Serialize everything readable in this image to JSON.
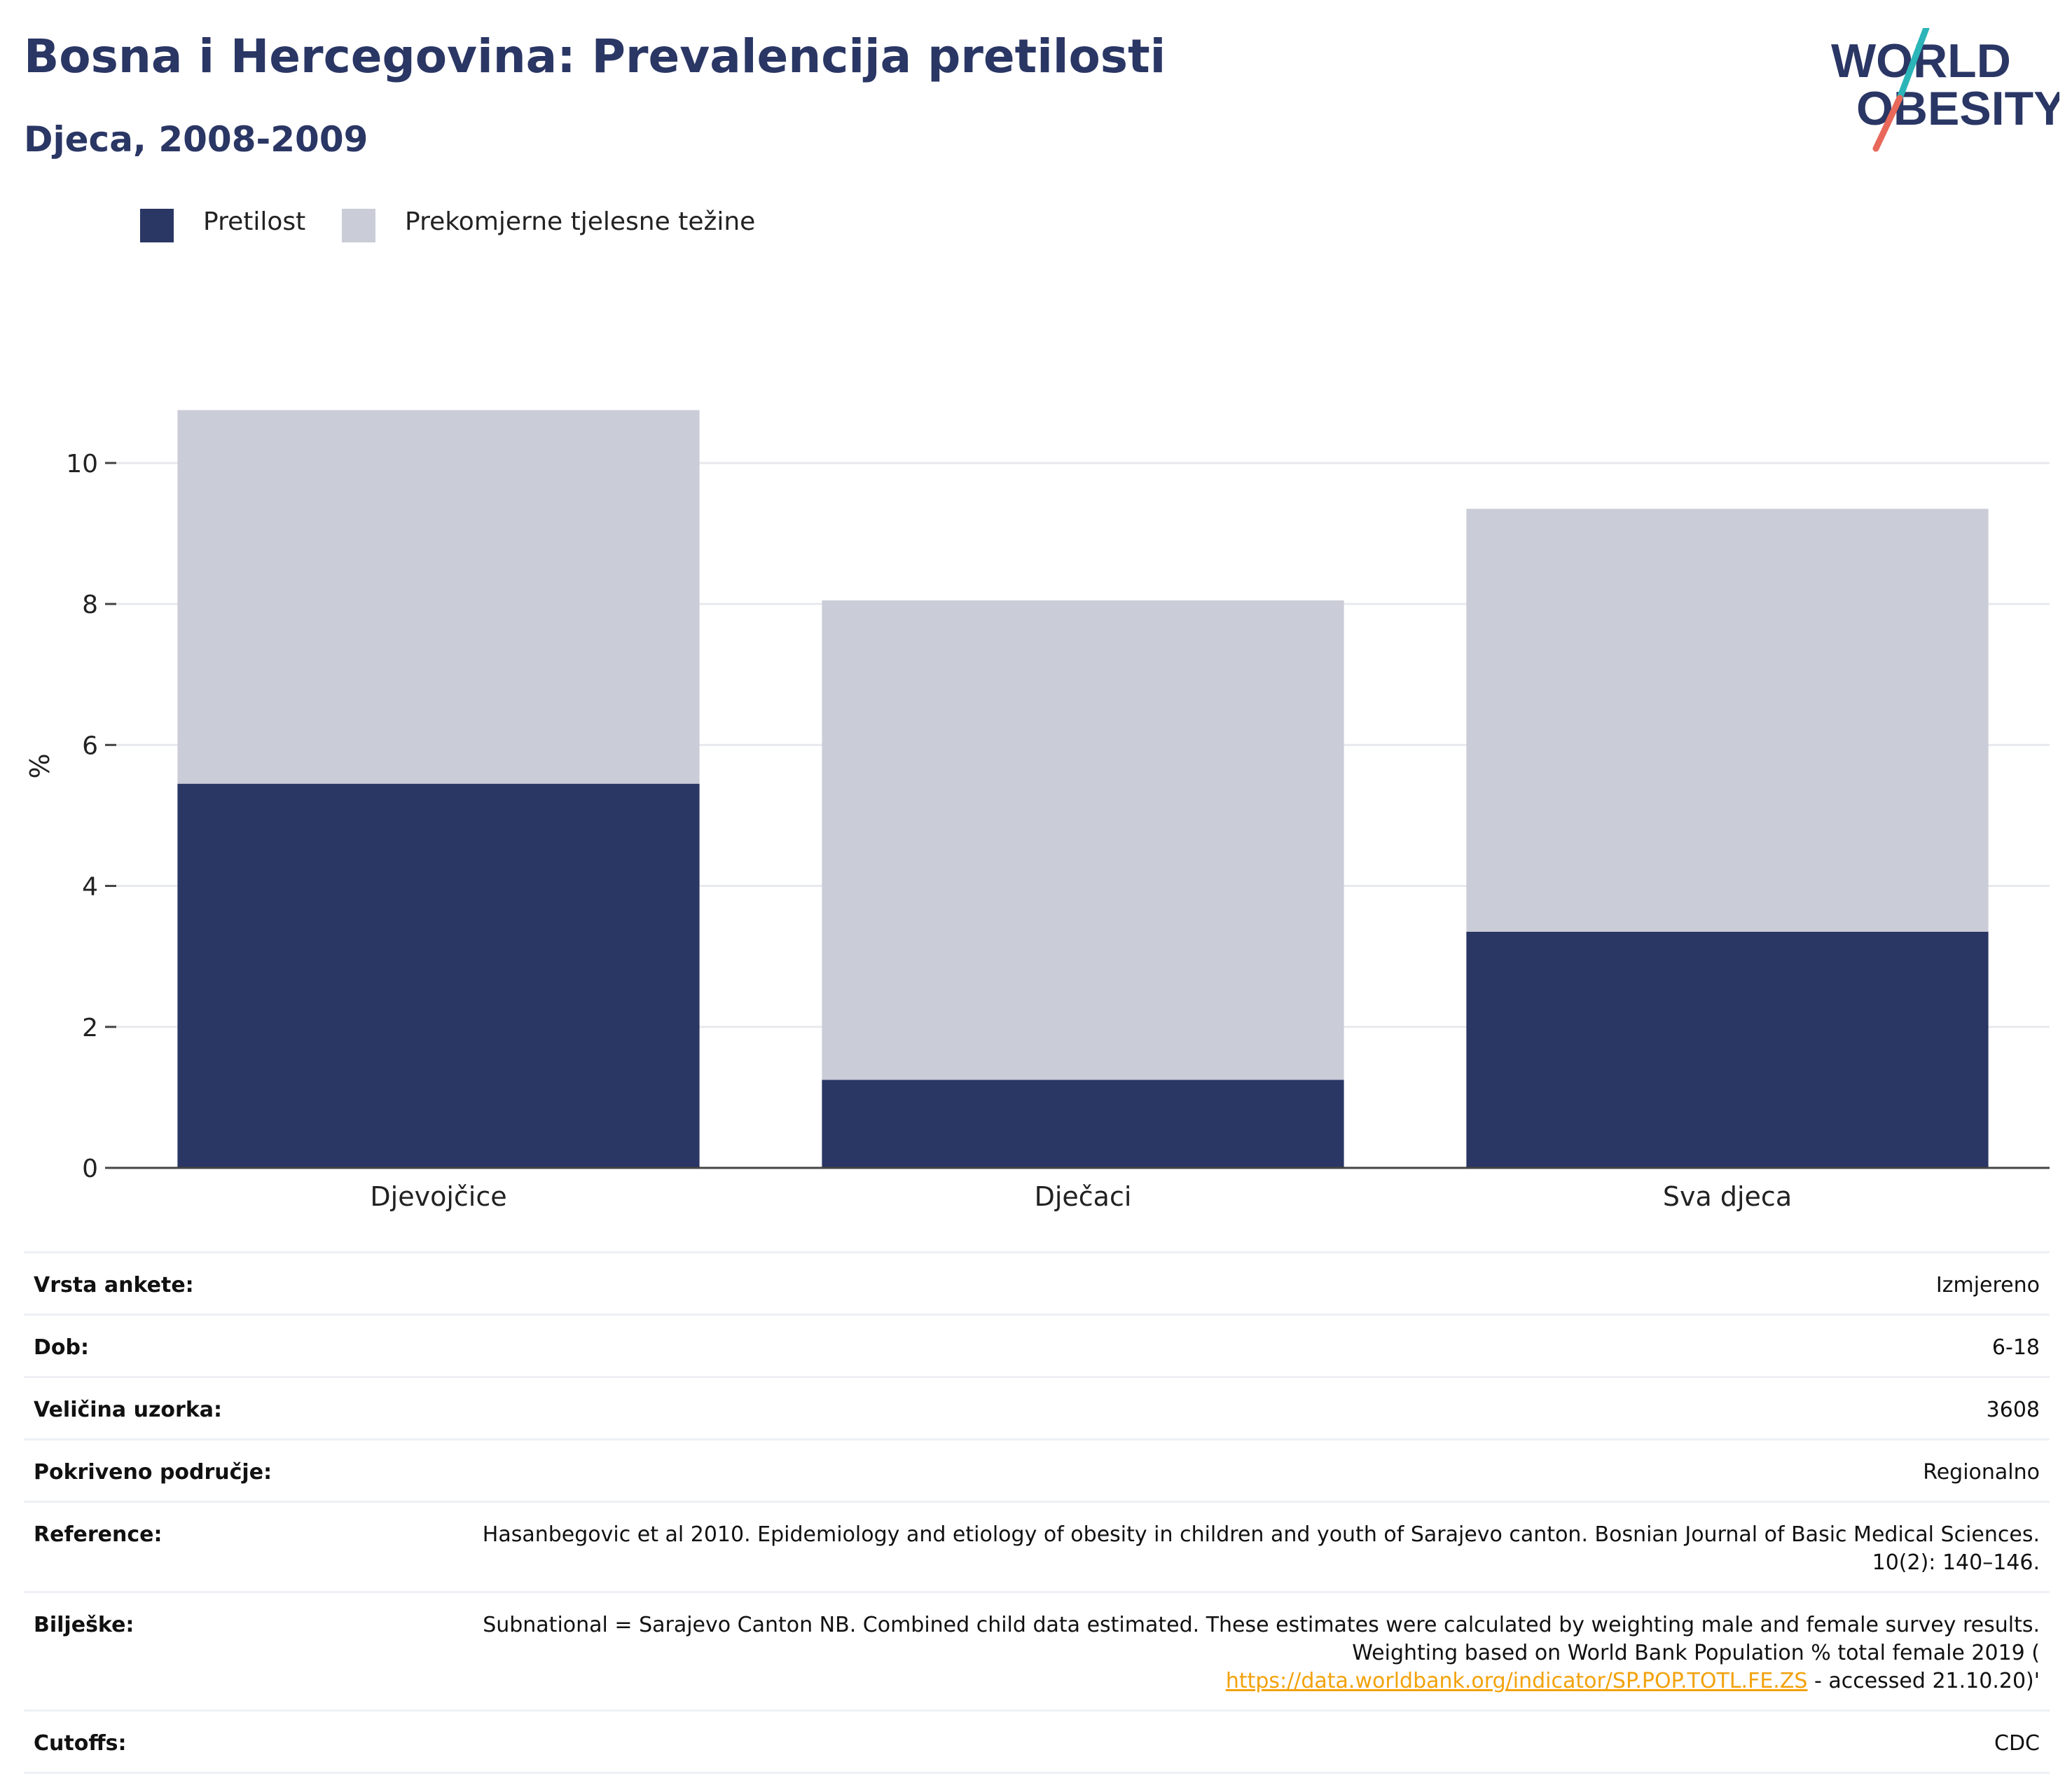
{
  "header": {
    "title": "Bosna i Hercegovina: Prevalencija pretilosti",
    "subtitle": "Djeca, 2008-2009"
  },
  "logo": {
    "line1": "WORLD",
    "line2": "OBESITY",
    "colors": {
      "text": "#2a3664",
      "slash_top": "#2bb5b8",
      "slash_bottom": "#e8685a"
    }
  },
  "colors": {
    "obesity": "#2a3664",
    "overweight": "#caccd7",
    "grid": "#e8e9ee",
    "axis": "#444444",
    "link": "#f2a20c"
  },
  "chart_data": {
    "type": "bar",
    "stacked": true,
    "categories": [
      "Djevojčice",
      "Dječaci",
      "Sva djeca"
    ],
    "series": [
      {
        "name": "Pretilost",
        "color": "#2a3664",
        "values": [
          5.45,
          1.25,
          3.35
        ]
      },
      {
        "name": "Prekomjerne tjelesne težine",
        "color": "#caccd7",
        "values": [
          5.3,
          6.8,
          6.0
        ]
      }
    ],
    "ylabel": "%",
    "xlabel": "",
    "ylim": [
      0,
      11.4
    ],
    "yticks": [
      0,
      2,
      4,
      6,
      8,
      10
    ],
    "grid": true,
    "legend": "top-left"
  },
  "info": {
    "rows": [
      {
        "key": "Vrsta ankete:",
        "value": "Izmjereno"
      },
      {
        "key": "Dob:",
        "value": "6-18"
      },
      {
        "key": "Veličina uzorka:",
        "value": "3608"
      },
      {
        "key": "Pokriveno područje:",
        "value": "Regionalno"
      },
      {
        "key": "Reference:",
        "value": "Hasanbegovic et al 2010. Epidemiology and etiology of obesity in children and youth of Sarajevo canton. Bosnian Journal of Basic Medical Sciences. 10(2): 140–146."
      },
      {
        "key": "Bilješke:",
        "value": "Subnational = Sarajevo Canton NB. Combined child data estimated. These estimates were calculated by weighting male and female survey results. Weighting based on World Bank Population % total female 2019 (",
        "link": "https://data.worldbank.org/indicator/SP.POP.TOTL.FE.ZS",
        "value_after": " - accessed 21.10.20)'"
      },
      {
        "key": "Cutoffs:",
        "value": "CDC"
      }
    ]
  }
}
